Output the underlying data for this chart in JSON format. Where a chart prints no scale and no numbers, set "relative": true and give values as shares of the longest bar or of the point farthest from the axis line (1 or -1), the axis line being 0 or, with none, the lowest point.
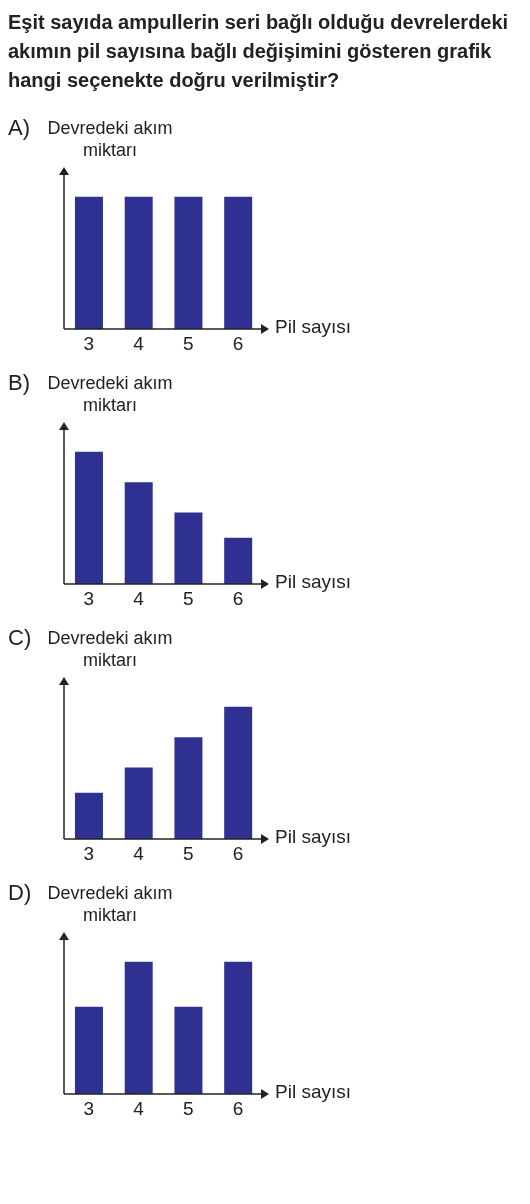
{
  "chart_data": [
    {
      "type": "bar",
      "title": "Eşit sayıda ampullerin seri bağlı olduğu devrelerdeki akımın pil sayısına bağlı değişimini gösteren grafik hangi seçenekte doğru verilmiştir?",
      "annotations": [
        "A)"
      ],
      "ylabel": "Devredeki akım miktarı",
      "xlabel": "Pil sayısı",
      "categories": [
        "3",
        "4",
        "5",
        "6"
      ],
      "values": [
        1,
        1,
        1,
        1
      ],
      "color": "#2e3192",
      "relative": true
    },
    {
      "type": "bar",
      "annotations": [
        "B)"
      ],
      "ylabel": "Devredeki akım miktarı",
      "xlabel": "Pil sayısı",
      "categories": [
        "3",
        "4",
        "5",
        "6"
      ],
      "values": [
        1,
        0.77,
        0.54,
        0.35
      ],
      "color": "#2e3192",
      "relative": true
    },
    {
      "type": "bar",
      "annotations": [
        "C)"
      ],
      "ylabel": "Devredeki akım miktarı",
      "xlabel": "Pil sayısı",
      "categories": [
        "3",
        "4",
        "5",
        "6"
      ],
      "values": [
        0.35,
        0.54,
        0.77,
        1
      ],
      "color": "#2e3192",
      "relative": true
    },
    {
      "type": "bar",
      "annotations": [
        "D)"
      ],
      "ylabel": "Devredeki akım miktarı",
      "xlabel": "Pil sayısı",
      "categories": [
        "3",
        "4",
        "5",
        "6"
      ],
      "values": [
        0.66,
        1,
        0.66,
        1
      ],
      "color": "#2e3192",
      "relative": true
    }
  ]
}
